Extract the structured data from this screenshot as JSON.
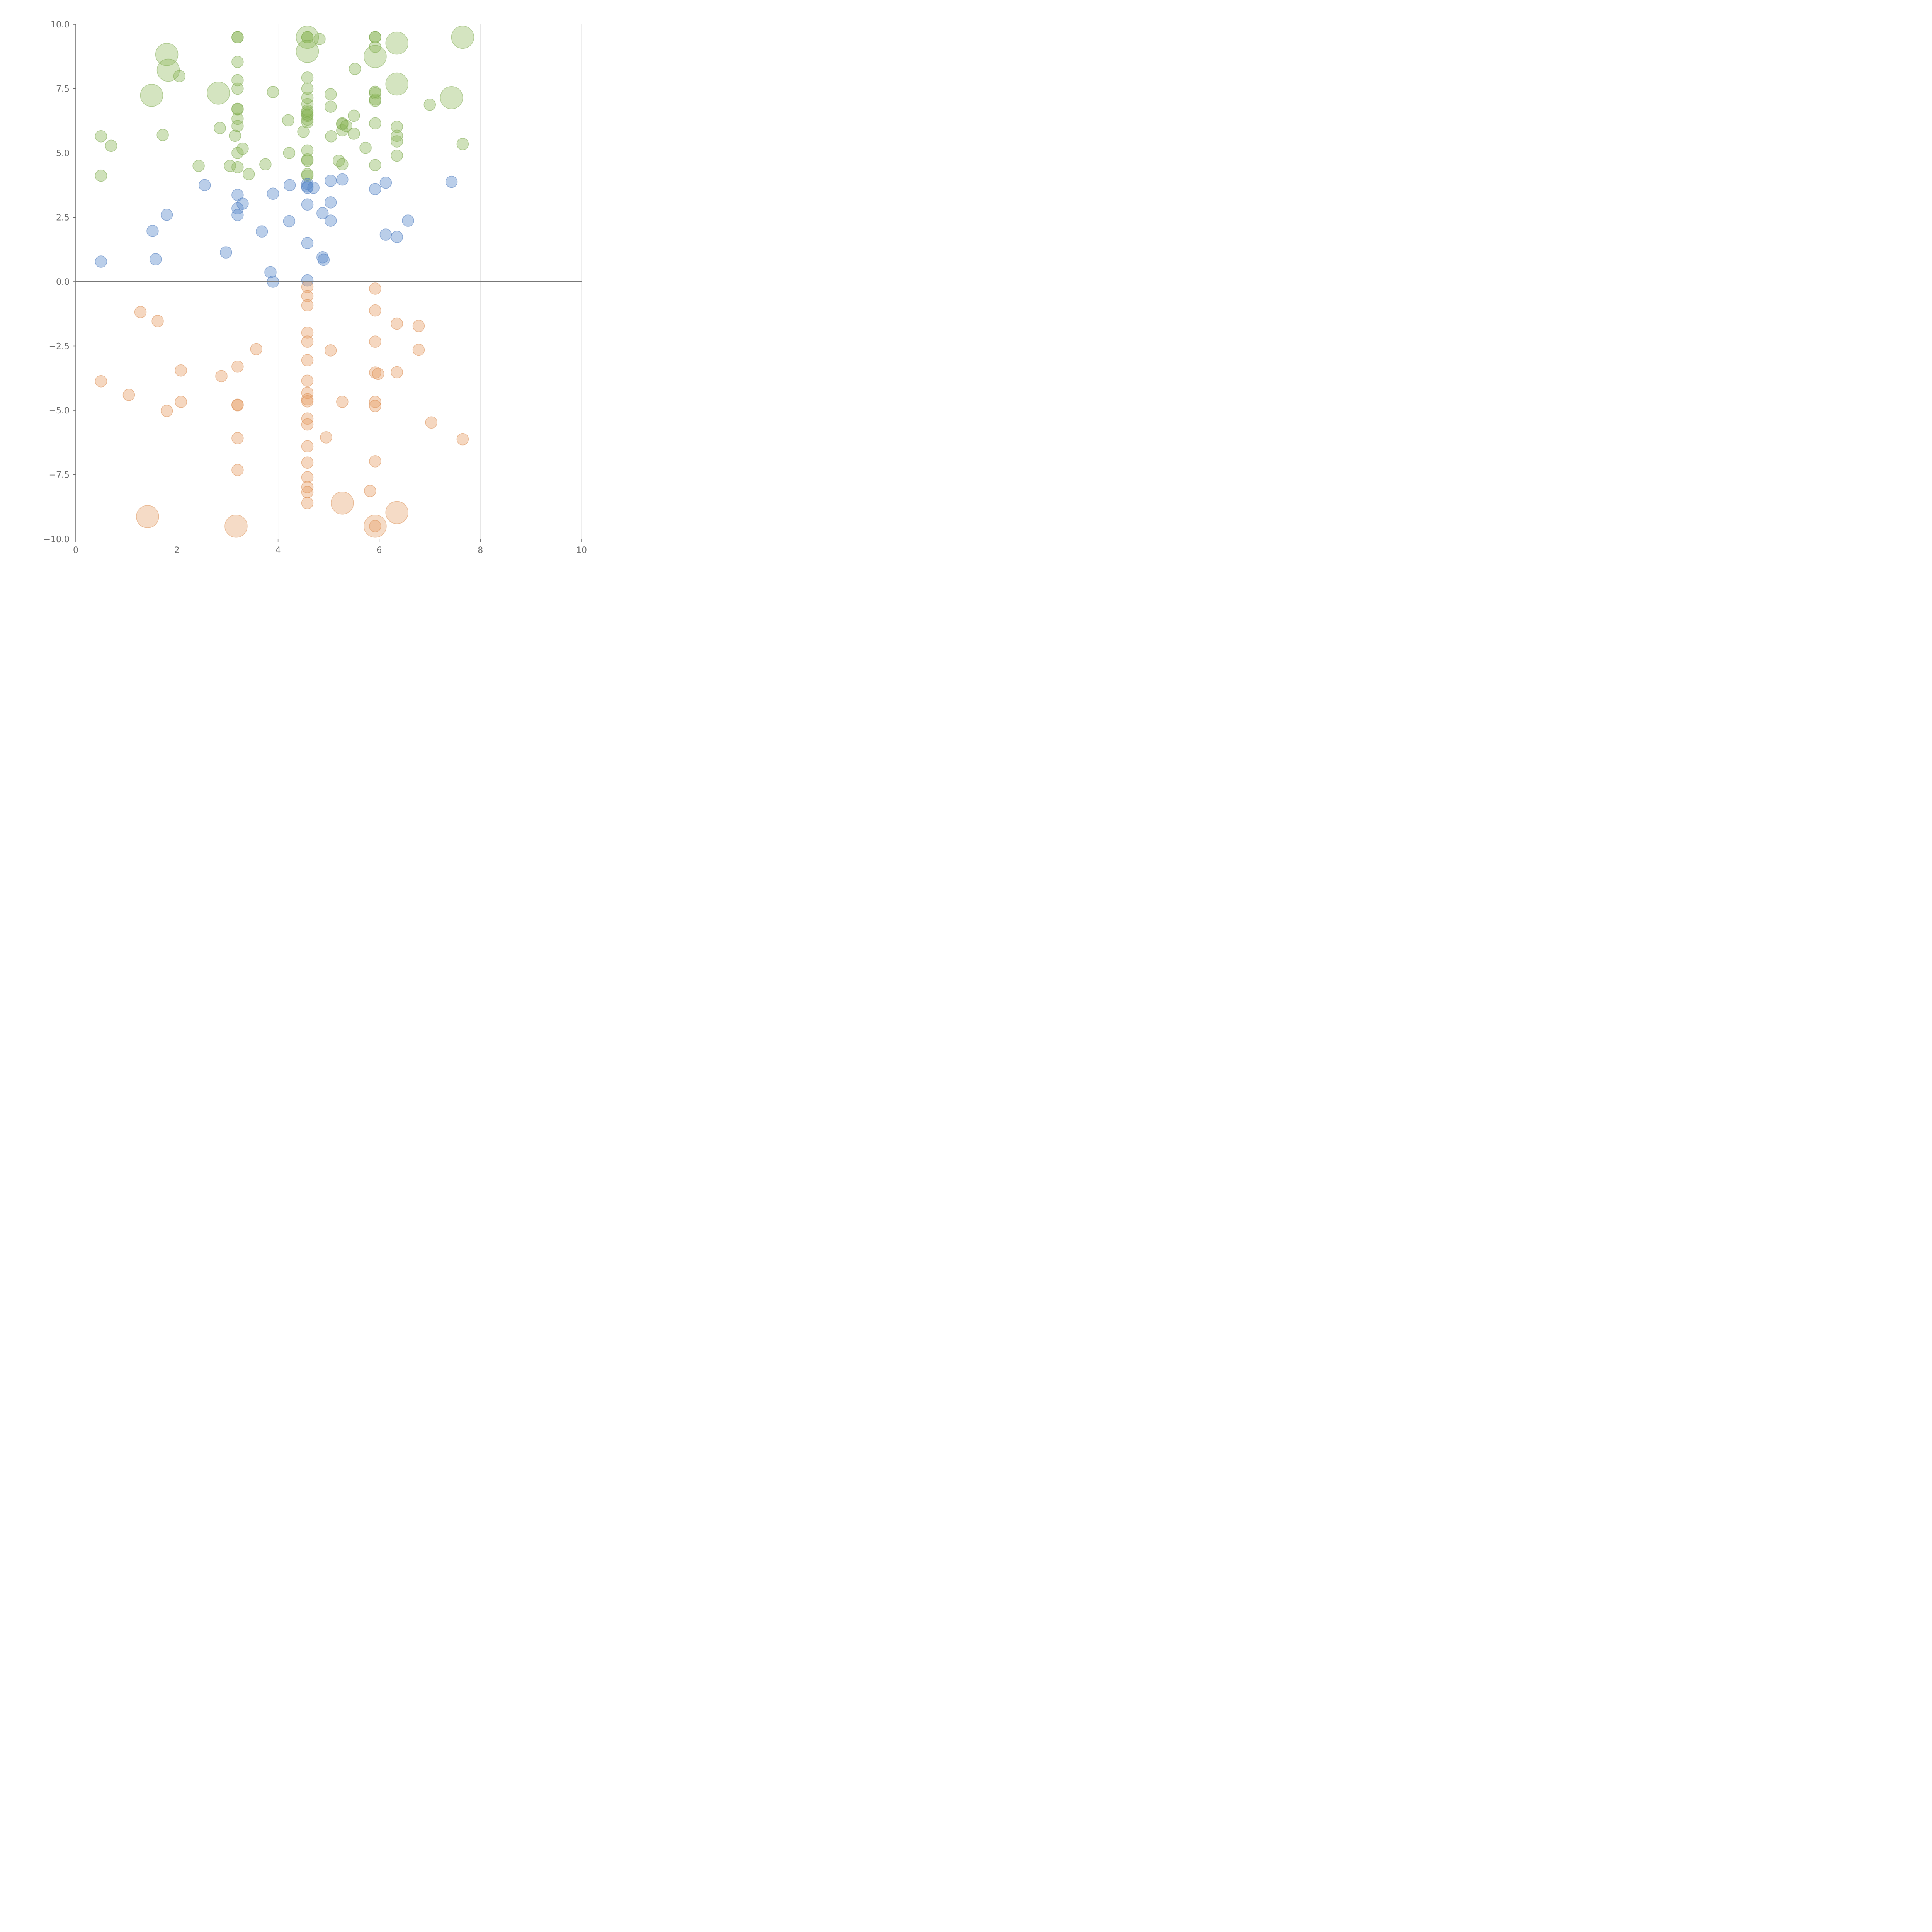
{
  "chart_data": {
    "type": "scatter",
    "title": "",
    "xlabel": "",
    "ylabel": "",
    "xlim": [
      0,
      10
    ],
    "ylim": [
      -10,
      10
    ],
    "grid": "vertical",
    "x_ticks": [
      {
        "value": 0,
        "label": "0"
      },
      {
        "value": 2,
        "label": "2"
      },
      {
        "value": 4,
        "label": "4"
      },
      {
        "value": 6,
        "label": "6"
      },
      {
        "value": 8,
        "label": "8"
      },
      {
        "value": 10,
        "label": "10"
      }
    ],
    "y_ticks": [
      {
        "value": 10,
        "label": "10.0"
      },
      {
        "value": 7.5,
        "label": "7.5"
      },
      {
        "value": 5,
        "label": "5.0"
      },
      {
        "value": 2.5,
        "label": "2.5"
      },
      {
        "value": 0,
        "label": "0.0"
      },
      {
        "value": -2.5,
        "label": "−2.5"
      },
      {
        "value": -5,
        "label": "−5.0"
      },
      {
        "value": -7.5,
        "label": "−7.5"
      },
      {
        "value": -10,
        "label": "−10.0"
      }
    ],
    "zero_line": true,
    "series": [
      {
        "color": "#8db85a",
        "stroke": "#7aa64a",
        "points": [
          [
            0.5,
            5.65
          ],
          [
            0.7,
            5.28
          ],
          [
            0.5,
            4.12
          ],
          [
            1.72,
            5.7
          ],
          [
            2.05,
            7.99
          ],
          [
            2.43,
            4.5
          ],
          [
            2.85,
            5.97
          ],
          [
            3.05,
            4.5
          ],
          [
            3.15,
            5.67
          ],
          [
            3.2,
            5.0
          ],
          [
            3.2,
            4.45
          ],
          [
            3.3,
            5.17
          ],
          [
            3.42,
            4.18
          ],
          [
            3.2,
            6.05
          ],
          [
            3.2,
            6.33
          ],
          [
            3.2,
            6.7
          ],
          [
            3.2,
            6.72
          ],
          [
            3.2,
            7.5
          ],
          [
            3.2,
            7.83
          ],
          [
            3.2,
            8.54
          ],
          [
            3.2,
            9.5
          ],
          [
            3.2,
            9.5
          ],
          [
            3.75,
            4.56
          ],
          [
            3.9,
            7.37
          ],
          [
            4.2,
            6.27
          ],
          [
            4.22,
            5.0
          ],
          [
            4.5,
            5.83
          ],
          [
            4.58,
            4.12
          ],
          [
            4.58,
            4.18
          ],
          [
            4.58,
            4.7
          ],
          [
            4.58,
            4.75
          ],
          [
            4.58,
            5.1
          ],
          [
            4.58,
            6.2
          ],
          [
            4.58,
            6.3
          ],
          [
            4.58,
            6.45
          ],
          [
            4.58,
            6.5
          ],
          [
            4.58,
            6.58
          ],
          [
            4.58,
            6.65
          ],
          [
            4.58,
            6.9
          ],
          [
            4.58,
            7.15
          ],
          [
            4.58,
            7.5
          ],
          [
            4.58,
            7.93
          ],
          [
            4.58,
            9.5
          ],
          [
            4.58,
            9.5
          ],
          [
            4.82,
            9.43
          ],
          [
            5.04,
            7.28
          ],
          [
            5.04,
            6.8
          ],
          [
            5.05,
            5.65
          ],
          [
            5.2,
            4.7
          ],
          [
            5.27,
            4.56
          ],
          [
            5.27,
            5.88
          ],
          [
            5.27,
            6.12
          ],
          [
            5.27,
            6.15
          ],
          [
            5.35,
            6.05
          ],
          [
            5.5,
            5.75
          ],
          [
            5.5,
            6.45
          ],
          [
            5.52,
            8.27
          ],
          [
            5.73,
            5.2
          ],
          [
            5.92,
            4.53
          ],
          [
            5.92,
            6.15
          ],
          [
            5.92,
            7.03
          ],
          [
            5.92,
            7.08
          ],
          [
            5.92,
            7.32
          ],
          [
            5.92,
            7.38
          ],
          [
            5.92,
            9.13
          ],
          [
            5.92,
            9.5
          ],
          [
            5.92,
            9.5
          ],
          [
            6.35,
            6.02
          ],
          [
            6.35,
            5.67
          ],
          [
            6.35,
            5.45
          ],
          [
            6.35,
            4.9
          ],
          [
            7.0,
            6.88
          ],
          [
            7.65,
            5.35
          ]
        ],
        "big_points": [
          [
            1.8,
            8.83
          ],
          [
            1.83,
            8.22
          ],
          [
            1.5,
            7.24
          ],
          [
            2.82,
            7.33
          ],
          [
            4.58,
            9.5
          ],
          [
            4.58,
            8.95
          ],
          [
            5.92,
            8.75
          ],
          [
            6.35,
            9.27
          ],
          [
            6.35,
            7.68
          ],
          [
            7.43,
            7.15
          ],
          [
            7.65,
            9.5
          ]
        ]
      },
      {
        "color": "#5b8acb",
        "stroke": "#4a79bb",
        "points": [
          [
            0.5,
            0.78
          ],
          [
            1.52,
            1.97
          ],
          [
            1.58,
            0.87
          ],
          [
            1.8,
            2.6
          ],
          [
            2.55,
            3.75
          ],
          [
            2.97,
            1.14
          ],
          [
            3.2,
            3.37
          ],
          [
            3.2,
            2.85
          ],
          [
            3.2,
            2.59
          ],
          [
            3.3,
            3.03
          ],
          [
            3.68,
            1.95
          ],
          [
            3.85,
            0.37
          ],
          [
            3.9,
            3.42
          ],
          [
            3.9,
            0.0
          ],
          [
            4.22,
            2.35
          ],
          [
            4.23,
            3.75
          ],
          [
            4.58,
            3.8
          ],
          [
            4.58,
            3.7
          ],
          [
            4.58,
            3.65
          ],
          [
            4.58,
            3.0
          ],
          [
            4.58,
            1.5
          ],
          [
            4.58,
            0.05
          ],
          [
            4.7,
            3.65
          ],
          [
            4.88,
            2.66
          ],
          [
            4.88,
            0.95
          ],
          [
            4.9,
            0.85
          ],
          [
            5.04,
            3.92
          ],
          [
            5.04,
            3.08
          ],
          [
            5.04,
            2.37
          ],
          [
            5.27,
            3.97
          ],
          [
            5.92,
            3.6
          ],
          [
            6.13,
            3.85
          ],
          [
            6.13,
            1.83
          ],
          [
            6.35,
            1.74
          ],
          [
            6.57,
            2.37
          ],
          [
            7.43,
            3.88
          ]
        ],
        "big_points": []
      },
      {
        "color": "#e6a06a",
        "stroke": "#d98b4e",
        "points": [
          [
            0.5,
            -3.87
          ],
          [
            1.05,
            -4.4
          ],
          [
            1.28,
            -1.18
          ],
          [
            1.62,
            -1.53
          ],
          [
            1.8,
            -5.02
          ],
          [
            2.08,
            -3.45
          ],
          [
            2.08,
            -4.67
          ],
          [
            2.88,
            -3.67
          ],
          [
            3.2,
            -3.3
          ],
          [
            3.2,
            -4.78
          ],
          [
            3.2,
            -4.8
          ],
          [
            3.2,
            -6.08
          ],
          [
            3.2,
            -7.32
          ],
          [
            3.57,
            -2.62
          ],
          [
            4.58,
            -0.2
          ],
          [
            4.58,
            -0.56
          ],
          [
            4.58,
            -0.92
          ],
          [
            4.58,
            -1.98
          ],
          [
            4.58,
            -2.33
          ],
          [
            4.58,
            -3.05
          ],
          [
            4.58,
            -3.85
          ],
          [
            4.58,
            -4.32
          ],
          [
            4.58,
            -4.57
          ],
          [
            4.58,
            -4.65
          ],
          [
            4.58,
            -5.32
          ],
          [
            4.58,
            -5.55
          ],
          [
            4.58,
            -6.4
          ],
          [
            4.58,
            -7.03
          ],
          [
            4.58,
            -7.6
          ],
          [
            4.58,
            -7.98
          ],
          [
            4.58,
            -8.18
          ],
          [
            4.58,
            -8.6
          ],
          [
            4.95,
            -6.05
          ],
          [
            5.04,
            -2.67
          ],
          [
            5.27,
            -4.67
          ],
          [
            5.82,
            -8.13
          ],
          [
            5.92,
            -0.27
          ],
          [
            5.92,
            -1.12
          ],
          [
            5.92,
            -2.33
          ],
          [
            5.92,
            -3.53
          ],
          [
            5.92,
            -4.67
          ],
          [
            5.92,
            -4.83
          ],
          [
            5.92,
            -6.98
          ],
          [
            5.92,
            -9.5
          ],
          [
            5.98,
            -3.58
          ],
          [
            6.35,
            -1.63
          ],
          [
            6.35,
            -3.52
          ],
          [
            6.78,
            -1.72
          ],
          [
            6.78,
            -2.65
          ],
          [
            7.03,
            -5.47
          ],
          [
            7.65,
            -6.12
          ]
        ],
        "big_points": [
          [
            1.42,
            -9.13
          ],
          [
            3.17,
            -9.5
          ],
          [
            5.27,
            -8.6
          ],
          [
            5.92,
            -9.5
          ],
          [
            6.35,
            -8.97
          ]
        ]
      }
    ]
  }
}
